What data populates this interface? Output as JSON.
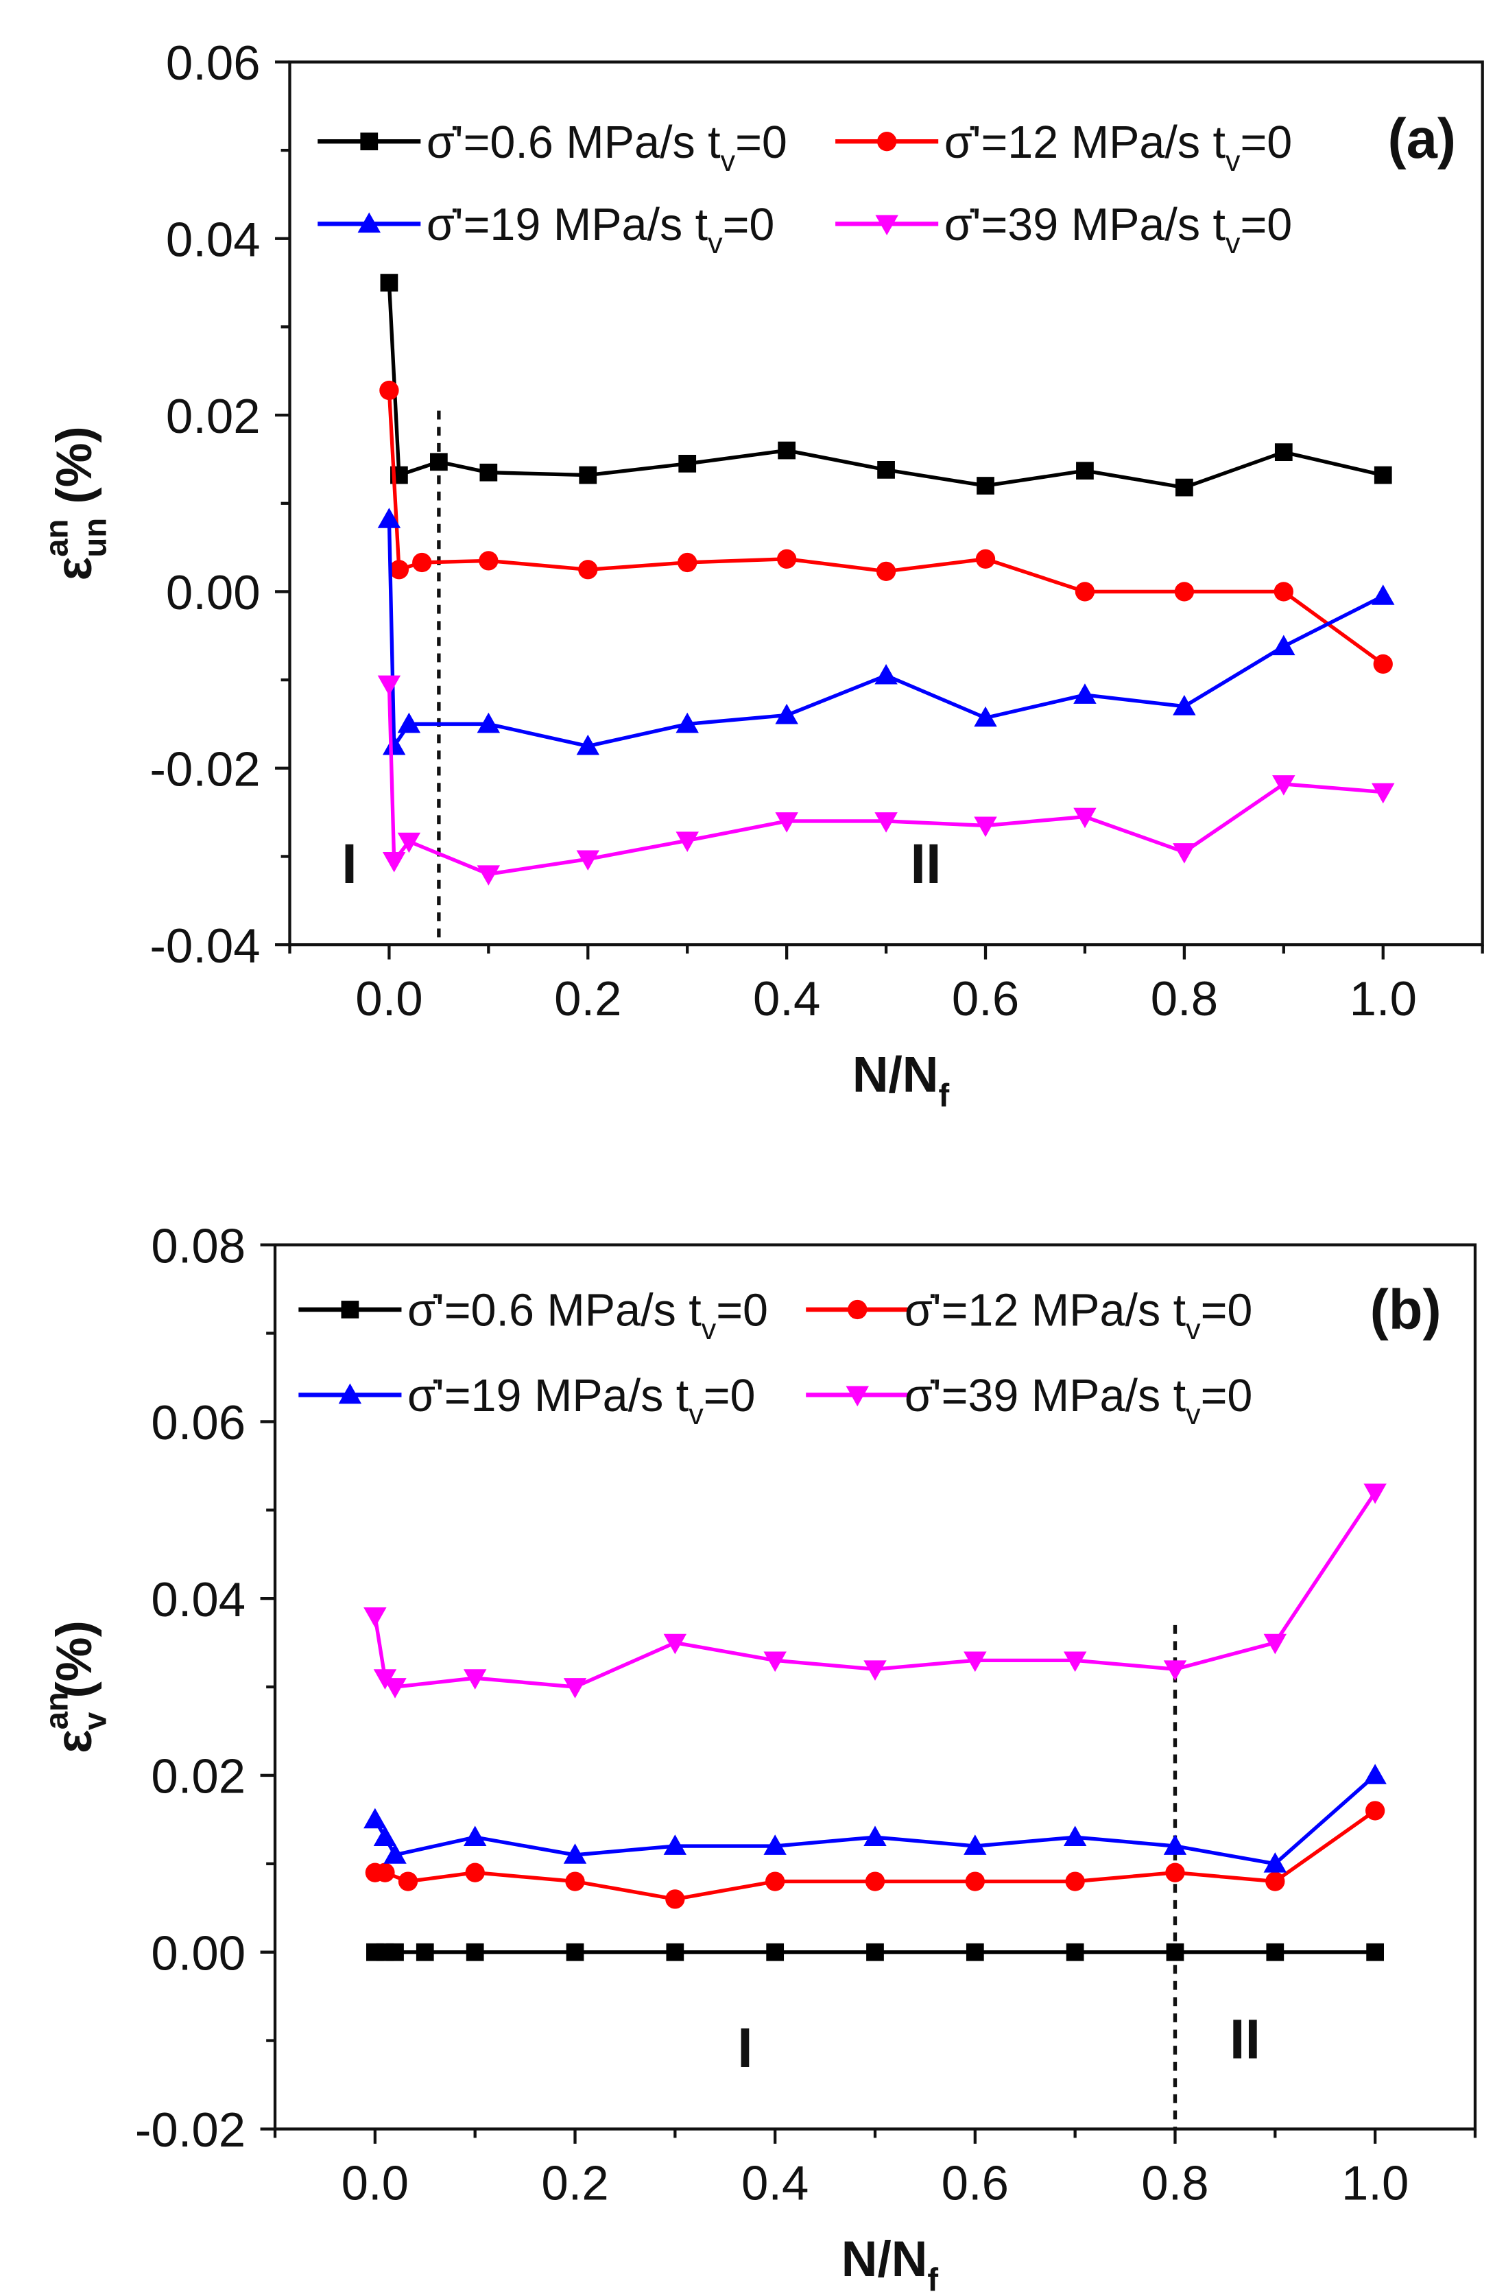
{
  "chart_data": [
    {
      "type": "line",
      "panel_label": "(a)",
      "xlabel": {
        "main": "N/N",
        "sub": "f"
      },
      "ylabel": {
        "main": "ε",
        "sup": "an",
        "sub": "un",
        "unit": "(%)"
      },
      "xlim": [
        -0.1,
        1.1
      ],
      "ylim": [
        -0.04,
        0.06
      ],
      "xticks": [
        "0.0",
        "0.2",
        "0.4",
        "0.6",
        "0.8",
        "1.0"
      ],
      "xtick_values": [
        0,
        0.2,
        0.4,
        0.6,
        0.8,
        1.0
      ],
      "yticks": [
        "-0.04",
        "-0.02",
        "0.00",
        "0.02",
        "0.04",
        "0.06"
      ],
      "ytick_values": [
        -0.04,
        -0.02,
        0,
        0.02,
        0.04,
        0.06
      ],
      "divider_x": 0.05,
      "regions": [
        {
          "label": "I",
          "x": -0.04,
          "y": -0.033
        },
        {
          "label": "II",
          "x": 0.54,
          "y": -0.033
        }
      ],
      "legend_position": "top",
      "series": [
        {
          "name": "σ̇'=0.6 MPa/s t",
          "sub": "v",
          "suffix": "=0",
          "color": "#000000",
          "marker": "square",
          "x": [
            0,
            0.01,
            0.05,
            0.1,
            0.2,
            0.3,
            0.4,
            0.5,
            0.6,
            0.7,
            0.8,
            0.9,
            1.0
          ],
          "y": [
            0.035,
            0.0132,
            0.0147,
            0.0135,
            0.0132,
            0.0145,
            0.016,
            0.0138,
            0.012,
            0.0137,
            0.0118,
            0.0158,
            0.0132
          ]
        },
        {
          "name": "σ̇'=12 MPa/s t",
          "sub": "v",
          "suffix": "=0",
          "color": "#ff0000",
          "marker": "circle",
          "x": [
            0,
            0.01,
            0.033,
            0.1,
            0.2,
            0.3,
            0.4,
            0.5,
            0.6,
            0.7,
            0.8,
            0.9,
            1.0
          ],
          "y": [
            0.0228,
            0.0025,
            0.0033,
            0.0035,
            0.0025,
            0.0033,
            0.0037,
            0.0023,
            0.0037,
            0.0,
            0.0,
            0.0,
            -0.0082
          ]
        },
        {
          "name": "σ̇'=19 MPa/s t",
          "sub": "v",
          "suffix": "=0",
          "color": "#0000ff",
          "marker": "triangle-up",
          "x": [
            0,
            0.005,
            0.02,
            0.1,
            0.2,
            0.3,
            0.4,
            0.5,
            0.6,
            0.7,
            0.8,
            0.9,
            1.0
          ],
          "y": [
            0.0082,
            -0.0175,
            -0.015,
            -0.015,
            -0.0175,
            -0.015,
            -0.014,
            -0.0095,
            -0.0143,
            -0.0117,
            -0.013,
            -0.0062,
            -0.0005
          ]
        },
        {
          "name": "σ̇'=39 MPa/s t",
          "sub": "v",
          "suffix": "=0",
          "color": "#ff00ff",
          "marker": "triangle-down",
          "x": [
            0,
            0.005,
            0.02,
            0.1,
            0.2,
            0.3,
            0.4,
            0.5,
            0.6,
            0.7,
            0.8,
            0.9,
            1.0
          ],
          "y": [
            -0.0105,
            -0.0305,
            -0.0283,
            -0.032,
            -0.0303,
            -0.0282,
            -0.026,
            -0.026,
            -0.0265,
            -0.0255,
            -0.0295,
            -0.0218,
            -0.0227
          ]
        }
      ]
    },
    {
      "type": "line",
      "panel_label": "(b)",
      "xlabel": {
        "main": "N/N",
        "sub": "f"
      },
      "ylabel": {
        "main": "ε",
        "sup": "an",
        "sub": "v",
        "unit": "(%)"
      },
      "xlim": [
        -0.1,
        1.1
      ],
      "ylim": [
        -0.02,
        0.08
      ],
      "xticks": [
        "0.0",
        "0.2",
        "0.4",
        "0.6",
        "0.8",
        "1.0"
      ],
      "xtick_values": [
        0,
        0.2,
        0.4,
        0.6,
        0.8,
        1.0
      ],
      "yticks": [
        "-0.02",
        "0.00",
        "0.02",
        "0.04",
        "0.06",
        "0.08"
      ],
      "ytick_values": [
        -0.02,
        0,
        0.02,
        0.04,
        0.06,
        0.08
      ],
      "divider_x": 0.8,
      "regions": [
        {
          "label": "I",
          "x": 0.37,
          "y": -0.013
        },
        {
          "label": "II",
          "x": 0.87,
          "y": -0.012
        }
      ],
      "legend_position": "top",
      "series": [
        {
          "name": "σ̇'=0.6 MPa/s t",
          "sub": "v",
          "suffix": "=0",
          "color": "#000000",
          "marker": "square",
          "x": [
            0,
            0.01,
            0.02,
            0.05,
            0.1,
            0.2,
            0.3,
            0.4,
            0.5,
            0.6,
            0.7,
            0.8,
            0.9,
            1.0
          ],
          "y": [
            0,
            0,
            0,
            0,
            0,
            0,
            0,
            0,
            0,
            0,
            0,
            0,
            0,
            0
          ]
        },
        {
          "name": "σ̇'=12 MPa/s t",
          "sub": "v",
          "suffix": "=0",
          "color": "#ff0000",
          "marker": "circle",
          "x": [
            0,
            0.01,
            0.033,
            0.1,
            0.2,
            0.3,
            0.4,
            0.5,
            0.6,
            0.7,
            0.8,
            0.9,
            1.0
          ],
          "y": [
            0.009,
            0.009,
            0.008,
            0.009,
            0.008,
            0.006,
            0.008,
            0.008,
            0.008,
            0.008,
            0.009,
            0.008,
            0.016
          ]
        },
        {
          "name": "σ̇'=19 MPa/s t",
          "sub": "v",
          "suffix": "=0",
          "color": "#0000ff",
          "marker": "triangle-up",
          "x": [
            0,
            0.01,
            0.02,
            0.1,
            0.2,
            0.3,
            0.4,
            0.5,
            0.6,
            0.7,
            0.8,
            0.9,
            1.0
          ],
          "y": [
            0.015,
            0.013,
            0.011,
            0.013,
            0.011,
            0.012,
            0.012,
            0.013,
            0.012,
            0.013,
            0.012,
            0.01,
            0.02
          ]
        },
        {
          "name": "σ̇'=39 MPa/s t",
          "sub": "v",
          "suffix": "=0",
          "color": "#ff00ff",
          "marker": "triangle-down",
          "x": [
            0,
            0.01,
            0.02,
            0.1,
            0.2,
            0.3,
            0.4,
            0.5,
            0.6,
            0.7,
            0.8,
            0.9,
            1.0
          ],
          "y": [
            0.038,
            0.031,
            0.03,
            0.031,
            0.03,
            0.035,
            0.033,
            0.032,
            0.033,
            0.033,
            0.032,
            0.035,
            0.052
          ]
        }
      ]
    }
  ]
}
